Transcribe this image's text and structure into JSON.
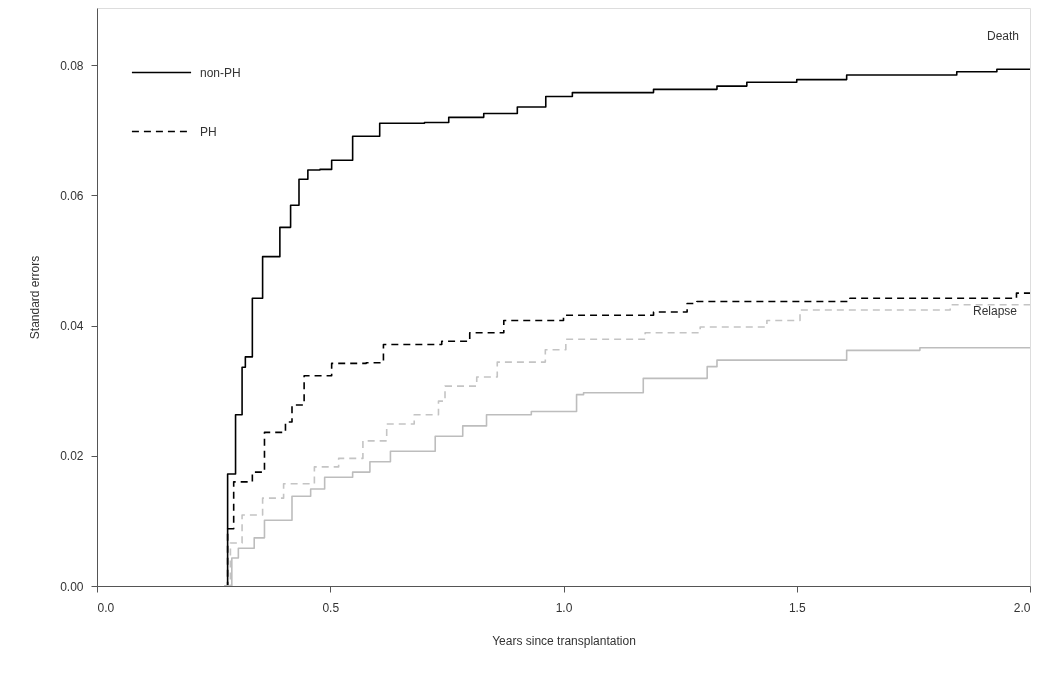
{
  "chart_data": {
    "type": "step",
    "xlabel": "Years since transplantation",
    "ylabel": "Standard errors",
    "xlim": [
      0,
      2
    ],
    "ylim": [
      0,
      0.0888
    ],
    "xticks": [
      {
        "value": 0,
        "label": "0.0"
      },
      {
        "value": 0.5,
        "label": "0.5"
      },
      {
        "value": 1,
        "label": "1.0"
      },
      {
        "value": 1.5,
        "label": "1.5"
      },
      {
        "value": 2,
        "label": "2.0"
      }
    ],
    "yticks": [
      {
        "value": 0,
        "label": "0.00"
      },
      {
        "value": 0.02,
        "label": "0.02"
      },
      {
        "value": 0.04,
        "label": "0.04"
      },
      {
        "value": 0.06,
        "label": "0.06"
      },
      {
        "value": 0.08,
        "label": "0.08"
      }
    ],
    "grid": false,
    "legend": "top left",
    "annotations": [
      "Death",
      "Relapse"
    ],
    "series": [
      {
        "name": "non-PH",
        "color": "#000000",
        "line_style": "solid",
        "x": [
          0.274,
          0.28,
          0.297,
          0.311,
          0.318,
          0.333,
          0.355,
          0.392,
          0.415,
          0.433,
          0.452,
          0.478,
          0.503,
          0.548,
          0.606,
          0.702,
          0.754,
          0.829,
          0.901,
          0.962,
          1.019,
          1.193,
          1.329,
          1.393,
          1.5,
          1.607,
          1.843,
          1.929,
          2.0
        ],
        "values": [
          0,
          0.0172,
          0.0263,
          0.0336,
          0.0352,
          0.0442,
          0.0506,
          0.0551,
          0.0585,
          0.0625,
          0.0639,
          0.064,
          0.0654,
          0.0691,
          0.0711,
          0.0712,
          0.072,
          0.0726,
          0.0736,
          0.0752,
          0.0758,
          0.0763,
          0.0768,
          0.0774,
          0.0778,
          0.0785,
          0.079,
          0.0794,
          0.0794
        ]
      },
      {
        "name": "PH",
        "color": "#000000",
        "line_style": "dashed",
        "x": [
          0.274,
          0.28,
          0.293,
          0.333,
          0.359,
          0.404,
          0.418,
          0.444,
          0.503,
          0.577,
          0.614,
          0.739,
          0.799,
          0.872,
          1.0,
          1.193,
          1.265,
          1.286,
          1.614,
          1.971,
          2.0
        ],
        "values": [
          0,
          0.0088,
          0.016,
          0.0175,
          0.0236,
          0.0252,
          0.0278,
          0.0323,
          0.0342,
          0.0343,
          0.0371,
          0.0376,
          0.0389,
          0.0408,
          0.0416,
          0.0421,
          0.0434,
          0.0437,
          0.0442,
          0.045,
          0.045
        ]
      },
      {
        "color": "#bdbdbd",
        "line_style": "solid",
        "x": [
          0.274,
          0.289,
          0.303,
          0.337,
          0.359,
          0.418,
          0.458,
          0.488,
          0.548,
          0.585,
          0.629,
          0.725,
          0.784,
          0.835,
          0.931,
          1.028,
          1.043,
          1.171,
          1.308,
          1.329,
          1.607,
          1.764,
          2.0
        ],
        "values": [
          0,
          0.0043,
          0.0058,
          0.0074,
          0.0101,
          0.0138,
          0.0149,
          0.0167,
          0.0175,
          0.0191,
          0.0207,
          0.023,
          0.0246,
          0.0263,
          0.0268,
          0.0294,
          0.0297,
          0.0319,
          0.0337,
          0.0347,
          0.0362,
          0.0366,
          0.0366
        ]
      },
      {
        "color": "#c4c4c4",
        "line_style": "dashed",
        "x": [
          0.274,
          0.286,
          0.311,
          0.355,
          0.4,
          0.466,
          0.518,
          0.57,
          0.621,
          0.68,
          0.732,
          0.746,
          0.814,
          0.858,
          0.961,
          1.005,
          1.175,
          1.293,
          1.436,
          1.507,
          1.829,
          2.0
        ],
        "values": [
          0,
          0.0066,
          0.0109,
          0.0135,
          0.0157,
          0.0183,
          0.0196,
          0.0223,
          0.0249,
          0.0263,
          0.0284,
          0.0307,
          0.0321,
          0.0344,
          0.0363,
          0.0379,
          0.0389,
          0.0398,
          0.0408,
          0.0424,
          0.0432,
          0.0432
        ]
      }
    ]
  }
}
